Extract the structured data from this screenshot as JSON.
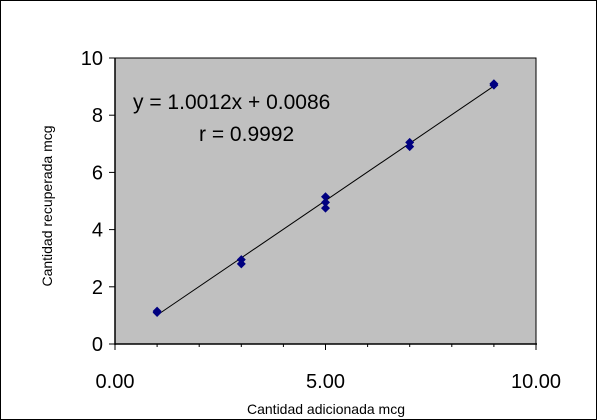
{
  "chart_data": {
    "type": "scatter",
    "xlabel": "Cantidad adicionada mcg",
    "ylabel": "Cantidad recuperada mcg",
    "xlim": [
      0,
      10
    ],
    "ylim": [
      0,
      10
    ],
    "x_ticks": [
      "0.00",
      "5.00",
      "10.00"
    ],
    "y_ticks": [
      "0",
      "2",
      "4",
      "6",
      "8",
      "10"
    ],
    "series": [
      {
        "points": [
          [
            1,
            1.15
          ],
          [
            1,
            1.1
          ],
          [
            3,
            2.95
          ],
          [
            3,
            2.8
          ],
          [
            5,
            5.15
          ],
          [
            5,
            4.95
          ],
          [
            5,
            4.75
          ],
          [
            7,
            7.05
          ],
          [
            7,
            6.9
          ],
          [
            9,
            9.1
          ],
          [
            9,
            9.05
          ]
        ],
        "color": "#000080"
      }
    ],
    "trendline": {
      "slope": 1.0012,
      "intercept": 0.0086,
      "x_range": [
        1,
        9
      ]
    },
    "annotations": [
      "y = 1.0012x + 0.0086",
      "r = 0.9992"
    ],
    "plot_background": "#c0c0c0",
    "grid": false,
    "legend": "none"
  }
}
